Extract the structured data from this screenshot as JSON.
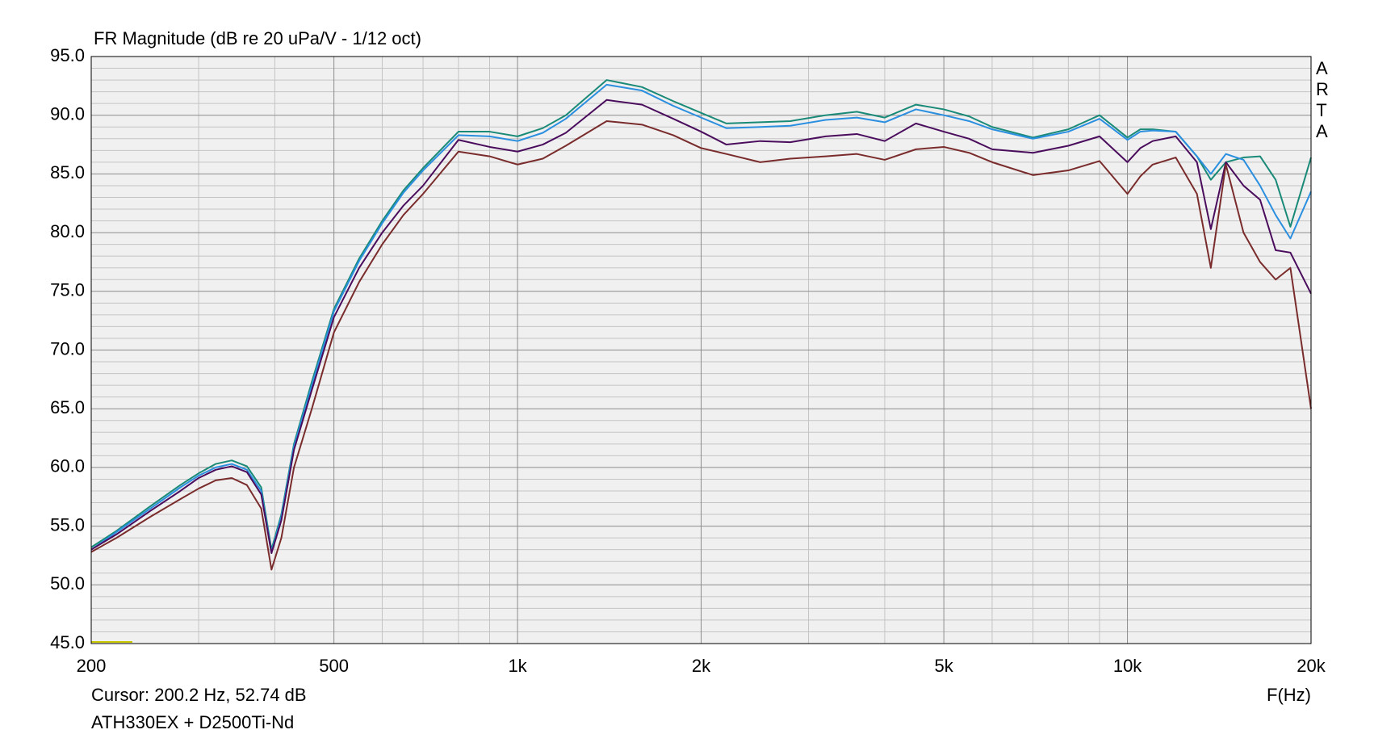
{
  "chart_data": {
    "type": "line",
    "title": "FR Magnitude (dB re 20 uPa/V - 1/12 oct)",
    "brand": "ARTA",
    "x_label": "F(Hz)",
    "cursor": "Cursor: 200.2 Hz, 52.74 dB",
    "caption": "ATH330EX + D2500Ti-Nd",
    "log_x": true,
    "grid": true,
    "x": [
      200,
      220,
      250,
      280,
      300,
      320,
      340,
      360,
      380,
      395,
      410,
      430,
      460,
      500,
      550,
      600,
      650,
      700,
      800,
      900,
      1000,
      1100,
      1200,
      1400,
      1600,
      1800,
      2000,
      2200,
      2500,
      2800,
      3200,
      3600,
      4000,
      4500,
      5000,
      5500,
      6000,
      7000,
      8000,
      9000,
      10000,
      10500,
      11000,
      12000,
      13000,
      13700,
      14500,
      15500,
      16500,
      17500,
      18500,
      20000
    ],
    "series": [
      {
        "color": "#1a8a78",
        "values": [
          53.2,
          54.6,
          56.7,
          58.5,
          59.5,
          60.3,
          60.6,
          60.1,
          58.3,
          53.0,
          56.0,
          62.0,
          67.3,
          73.5,
          77.8,
          81.0,
          83.6,
          85.5,
          88.6,
          88.6,
          88.2,
          88.9,
          90.0,
          93.0,
          92.4,
          91.2,
          90.2,
          89.3,
          89.4,
          89.5,
          90.0,
          90.3,
          89.8,
          90.9,
          90.5,
          89.9,
          89.0,
          88.1,
          88.8,
          90.0,
          88.1,
          88.8,
          88.8,
          88.6,
          86.5,
          84.5,
          86.0,
          86.4,
          86.5,
          84.5,
          80.5,
          86.4
        ]
      },
      {
        "color": "#2b8fe0",
        "values": [
          53.0,
          54.5,
          56.5,
          58.3,
          59.3,
          60.0,
          60.3,
          59.8,
          58.0,
          52.8,
          55.8,
          61.8,
          67.0,
          73.3,
          77.6,
          80.8,
          83.4,
          85.3,
          88.3,
          88.2,
          87.8,
          88.5,
          89.7,
          92.6,
          92.1,
          90.8,
          89.8,
          88.9,
          89.0,
          89.1,
          89.6,
          89.8,
          89.4,
          90.5,
          90.0,
          89.5,
          88.8,
          88.0,
          88.6,
          89.7,
          87.9,
          88.6,
          88.7,
          88.6,
          86.5,
          85.0,
          86.7,
          86.2,
          84.0,
          81.5,
          79.5,
          83.5
        ]
      },
      {
        "color": "#4a0c5c",
        "values": [
          53.0,
          54.3,
          56.3,
          58.0,
          59.1,
          59.8,
          60.1,
          59.6,
          57.7,
          52.7,
          55.5,
          61.5,
          66.6,
          72.8,
          77.0,
          80.0,
          82.3,
          84.0,
          87.9,
          87.3,
          86.9,
          87.5,
          88.5,
          91.3,
          90.9,
          89.7,
          88.6,
          87.5,
          87.8,
          87.7,
          88.2,
          88.4,
          87.8,
          89.3,
          88.6,
          88.0,
          87.1,
          86.8,
          87.4,
          88.2,
          86.0,
          87.2,
          87.8,
          88.2,
          86.0,
          80.3,
          86.0,
          84.0,
          82.8,
          78.5,
          78.3,
          74.8
        ]
      },
      {
        "color": "#7a2c2c",
        "values": [
          52.8,
          54.0,
          55.8,
          57.3,
          58.2,
          58.9,
          59.1,
          58.5,
          56.5,
          51.3,
          54.0,
          60.0,
          65.0,
          71.5,
          75.8,
          79.0,
          81.5,
          83.3,
          86.9,
          86.5,
          85.8,
          86.3,
          87.4,
          89.5,
          89.2,
          88.3,
          87.2,
          86.7,
          86.0,
          86.3,
          86.5,
          86.7,
          86.2,
          87.1,
          87.3,
          86.8,
          86.0,
          84.9,
          85.3,
          86.1,
          83.3,
          84.8,
          85.8,
          86.4,
          83.3,
          77.0,
          85.8,
          80.0,
          77.5,
          76.0,
          77.0,
          65.0
        ]
      }
    ],
    "xlim": [
      200,
      20000
    ],
    "xticks": [
      200,
      500,
      {
        "value": 1000,
        "label": "1k"
      },
      {
        "value": 2000,
        "label": "2k"
      },
      {
        "value": 5000,
        "label": "5k"
      },
      {
        "value": 10000,
        "label": "10k"
      },
      {
        "value": 20000,
        "label": "20k"
      }
    ],
    "xminor": [
      300,
      400,
      600,
      700,
      800,
      900,
      3000,
      4000,
      6000,
      7000,
      8000,
      9000
    ],
    "ylim": [
      45,
      95
    ],
    "yticks": [
      {
        "value": 45,
        "label": "45.0"
      },
      {
        "value": 50,
        "label": "50.0"
      },
      {
        "value": 55,
        "label": "55.0"
      },
      {
        "value": 60,
        "label": "60.0"
      },
      {
        "value": 65,
        "label": "65.0"
      },
      {
        "value": 70,
        "label": "70.0"
      },
      {
        "value": 75,
        "label": "75.0"
      },
      {
        "value": 80,
        "label": "80.0"
      },
      {
        "value": 85,
        "label": "85.0"
      },
      {
        "value": 90,
        "label": "90.0"
      },
      {
        "value": 95,
        "label": "95.0"
      }
    ],
    "yminor": [
      46,
      47,
      48,
      49,
      51,
      52,
      53,
      54,
      56,
      57,
      58,
      59,
      61,
      62,
      63,
      64,
      66,
      67,
      68,
      69,
      71,
      72,
      73,
      74,
      76,
      77,
      78,
      79,
      81,
      82,
      83,
      84,
      86,
      87,
      88,
      89,
      91,
      92,
      93,
      94
    ]
  }
}
